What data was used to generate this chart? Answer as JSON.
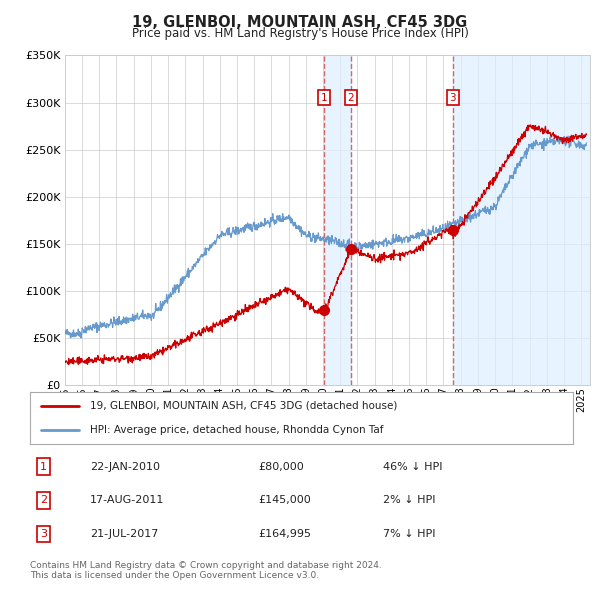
{
  "title": "19, GLENBOI, MOUNTAIN ASH, CF45 3DG",
  "subtitle": "Price paid vs. HM Land Registry's House Price Index (HPI)",
  "ylim": [
    0,
    350000
  ],
  "yticks": [
    0,
    50000,
    100000,
    150000,
    200000,
    250000,
    300000,
    350000
  ],
  "ytick_labels": [
    "£0",
    "£50K",
    "£100K",
    "£150K",
    "£200K",
    "£250K",
    "£300K",
    "£350K"
  ],
  "xlim_start": 1995.0,
  "xlim_end": 2025.5,
  "transactions": [
    {
      "num": 1,
      "date": "22-JAN-2010",
      "price": 80000,
      "pct": "46%",
      "dir": "↓",
      "x_year": 2010.06
    },
    {
      "num": 2,
      "date": "17-AUG-2011",
      "price": 145000,
      "pct": "2%",
      "dir": "↓",
      "x_year": 2011.63
    },
    {
      "num": 3,
      "date": "21-JUL-2017",
      "price": 164995,
      "pct": "7%",
      "dir": "↓",
      "x_year": 2017.55
    }
  ],
  "legend_line1": "19, GLENBOI, MOUNTAIN ASH, CF45 3DG (detached house)",
  "legend_line2": "HPI: Average price, detached house, Rhondda Cynon Taf",
  "footer1": "Contains HM Land Registry data © Crown copyright and database right 2024.",
  "footer2": "This data is licensed under the Open Government Licence v3.0.",
  "red_color": "#cc0000",
  "blue_color": "#6699cc",
  "bg_color": "#ffffff",
  "grid_color": "#cccccc",
  "vline_color": "#cc4444",
  "shade_color": "#ddeeff",
  "shade_alpha": 0.7
}
